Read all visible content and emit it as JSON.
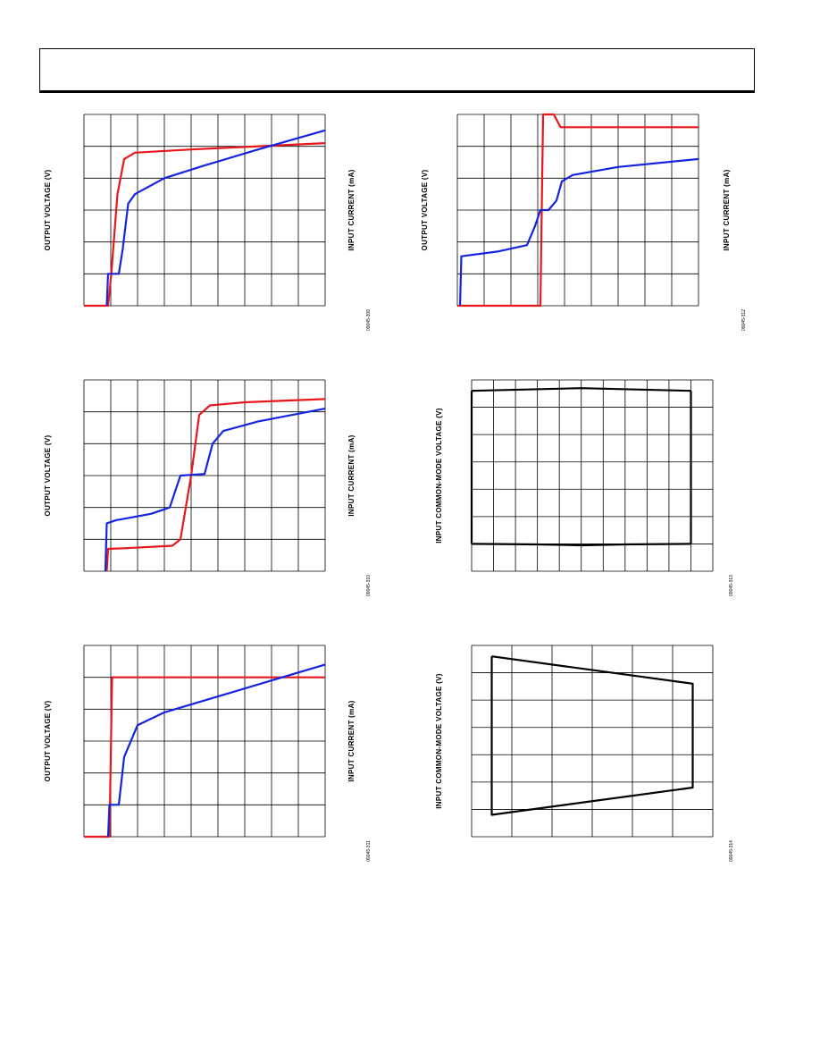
{
  "page": {
    "header_text": ""
  },
  "chart_data": [
    {
      "id": "p1",
      "type": "line",
      "grid": true,
      "ylabel_left": "OUTPUT VOLTAGE (V)",
      "ylabel_right": "INPUT CURRENT (mA)",
      "fig_id": "09045-309",
      "xlim": [
        0,
        9
      ],
      "ylim": [
        0,
        6
      ],
      "series": [
        {
          "color": "#e8171c",
          "points": [
            [
              0,
              0
            ],
            [
              0.9,
              0
            ],
            [
              1.02,
              1.0
            ],
            [
              1.25,
              3.5
            ],
            [
              1.5,
              4.6
            ],
            [
              1.9,
              4.8
            ],
            [
              4,
              4.9
            ],
            [
              6,
              4.98
            ],
            [
              9,
              5.1
            ]
          ]
        },
        {
          "color": "#1424e0",
          "points": [
            [
              0.85,
              0
            ],
            [
              0.9,
              1.0
            ],
            [
              1.3,
              1.0
            ],
            [
              1.45,
              1.8
            ],
            [
              1.65,
              3.2
            ],
            [
              1.9,
              3.5
            ],
            [
              3,
              4.0
            ],
            [
              4.5,
              4.4
            ],
            [
              6.5,
              4.9
            ],
            [
              9,
              5.5
            ]
          ]
        }
      ]
    },
    {
      "id": "p2",
      "type": "line",
      "grid": true,
      "ylabel_left": "OUTPUT VOLTAGE (V)",
      "ylabel_right": "INPUT CURRENT (mA)",
      "fig_id": "09045-310",
      "xlim": [
        0,
        9
      ],
      "ylim": [
        0,
        6
      ],
      "series": [
        {
          "color": "#e8171c",
          "points": [
            [
              0.85,
              0
            ],
            [
              0.9,
              0.7
            ],
            [
              1.5,
              0.72
            ],
            [
              3.3,
              0.8
            ],
            [
              3.6,
              1.0
            ],
            [
              4,
              3.0
            ],
            [
              4.3,
              4.9
            ],
            [
              4.7,
              5.2
            ],
            [
              6,
              5.3
            ],
            [
              9,
              5.4
            ]
          ]
        },
        {
          "color": "#1424e0",
          "points": [
            [
              0.8,
              0
            ],
            [
              0.85,
              1.5
            ],
            [
              1.2,
              1.6
            ],
            [
              2.5,
              1.8
            ],
            [
              3.2,
              2.0
            ],
            [
              3.6,
              3.0
            ],
            [
              4.5,
              3.05
            ],
            [
              4.8,
              4.0
            ],
            [
              5.2,
              4.4
            ],
            [
              6.5,
              4.7
            ],
            [
              9,
              5.1
            ]
          ]
        }
      ]
    },
    {
      "id": "p3",
      "type": "line",
      "grid": true,
      "ylabel_left": "OUTPUT VOLTAGE (V)",
      "ylabel_right": "INPUT CURRENT (mA)",
      "fig_id": "09045-311",
      "xlim": [
        0,
        9
      ],
      "ylim": [
        0,
        6
      ],
      "series": [
        {
          "color": "#e8171c",
          "points": [
            [
              0,
              0
            ],
            [
              0.95,
              0
            ],
            [
              1.05,
              5.0
            ],
            [
              9,
              5.0
            ]
          ]
        },
        {
          "color": "#1424e0",
          "points": [
            [
              0.9,
              0
            ],
            [
              0.95,
              1.0
            ],
            [
              1.3,
              1.0
            ],
            [
              1.5,
              2.5
            ],
            [
              2,
              3.5
            ],
            [
              3,
              3.9
            ],
            [
              5,
              4.4
            ],
            [
              7,
              4.9
            ],
            [
              9,
              5.4
            ]
          ]
        }
      ]
    },
    {
      "id": "p4",
      "type": "line",
      "grid": true,
      "ylabel_left": "OUTPUT VOLTAGE (V)",
      "ylabel_right": "INPUT CURRENT (mA)",
      "fig_id": "09045-312",
      "xlim": [
        0,
        9
      ],
      "ylim": [
        0,
        6
      ],
      "series": [
        {
          "color": "#e8171c",
          "points": [
            [
              0,
              0
            ],
            [
              3.1,
              0
            ],
            [
              3.2,
              6
            ],
            [
              3.6,
              6
            ],
            [
              3.85,
              5.6
            ],
            [
              9,
              5.6
            ]
          ]
        },
        {
          "color": "#1424e0",
          "points": [
            [
              0.1,
              0
            ],
            [
              0.15,
              1.55
            ],
            [
              1.5,
              1.7
            ],
            [
              2.6,
              1.9
            ],
            [
              2.9,
              2.5
            ],
            [
              3.1,
              3.0
            ],
            [
              3.4,
              3.0
            ],
            [
              3.7,
              3.3
            ],
            [
              3.9,
              3.9
            ],
            [
              4.3,
              4.1
            ],
            [
              6,
              4.35
            ],
            [
              9,
              4.6
            ]
          ]
        }
      ]
    },
    {
      "id": "p5",
      "type": "line",
      "grid": true,
      "ylabel_left": "INPUT COMMON-MODE VOLTAGE (V)",
      "fig_id": "09045-313",
      "xlim": [
        0,
        11
      ],
      "ylim": [
        0,
        7
      ],
      "series": [
        {
          "color": "#000000",
          "points": [
            [
              0,
              6.6
            ],
            [
              5,
              6.7
            ],
            [
              10,
              6.6
            ]
          ]
        },
        {
          "color": "#000000",
          "points": [
            [
              0,
              1.0
            ],
            [
              3,
              0.98
            ],
            [
              5,
              0.95
            ],
            [
              7,
              0.98
            ],
            [
              10,
              1.0
            ]
          ]
        },
        {
          "color": "#000000",
          "points": [
            [
              0,
              1.0
            ],
            [
              0,
              6.6
            ]
          ]
        },
        {
          "color": "#000000",
          "points": [
            [
              10,
              1.0
            ],
            [
              10,
              6.6
            ]
          ]
        }
      ]
    },
    {
      "id": "p6",
      "type": "line",
      "grid": true,
      "ylabel_left": "INPUT COMMON-MODE VOLTAGE (V)",
      "fig_id": "09045-314",
      "xlim": [
        0,
        6
      ],
      "ylim": [
        0,
        7
      ],
      "series": [
        {
          "color": "#000000",
          "points": [
            [
              0.5,
              6.6
            ],
            [
              5.5,
              5.6
            ],
            [
              5.5,
              1.8
            ],
            [
              0.5,
              0.8
            ],
            [
              0.5,
              6.6
            ]
          ]
        }
      ]
    }
  ]
}
